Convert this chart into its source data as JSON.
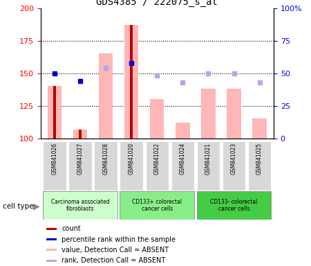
{
  "title": "GDS4385 / 222075_s_at",
  "samples": [
    "GSM841026",
    "GSM841027",
    "GSM841028",
    "GSM841020",
    "GSM841022",
    "GSM841024",
    "GSM841021",
    "GSM841023",
    "GSM841025"
  ],
  "bar_values": [
    140,
    107,
    165,
    187,
    130,
    112,
    138,
    138,
    115
  ],
  "bar_color": "#ffb6b6",
  "count_values": [
    140,
    107,
    null,
    187,
    null,
    null,
    null,
    null,
    null
  ],
  "count_color": "#bb0000",
  "rank_values": [
    150,
    144,
    null,
    158,
    null,
    null,
    null,
    null,
    null
  ],
  "rank_color": "#0000cc",
  "rank_absent_values": [
    null,
    null,
    154,
    null,
    148,
    143,
    150,
    150,
    143
  ],
  "rank_absent_color": "#aaaaee",
  "ylim": [
    100,
    200
  ],
  "yticks_left": [
    100,
    125,
    150,
    175,
    200
  ],
  "right_tick_labels": [
    "0",
    "25",
    "50",
    "75",
    "100%"
  ],
  "groups": [
    {
      "indices": [
        0,
        1,
        2
      ],
      "label": "Carcinoma associated\nfibroblasts",
      "color": "#ccffcc"
    },
    {
      "indices": [
        3,
        4,
        5
      ],
      "label": "CD133+ colorectal\ncancer cells",
      "color": "#88ee88"
    },
    {
      "indices": [
        6,
        7,
        8
      ],
      "label": "CD133- colorectal\ncancer cells",
      "color": "#44cc44"
    }
  ],
  "legend_items": [
    {
      "label": "count",
      "color": "#bb0000"
    },
    {
      "label": "percentile rank within the sample",
      "color": "#0000cc"
    },
    {
      "label": "value, Detection Call = ABSENT",
      "color": "#ffb6b6"
    },
    {
      "label": "rank, Detection Call = ABSENT",
      "color": "#aaaaee"
    }
  ],
  "cell_type_label": "cell type",
  "sample_box_color": "#d8d8d8",
  "grid_color": "black",
  "grid_linestyle": ":",
  "grid_linewidth": 0.8
}
